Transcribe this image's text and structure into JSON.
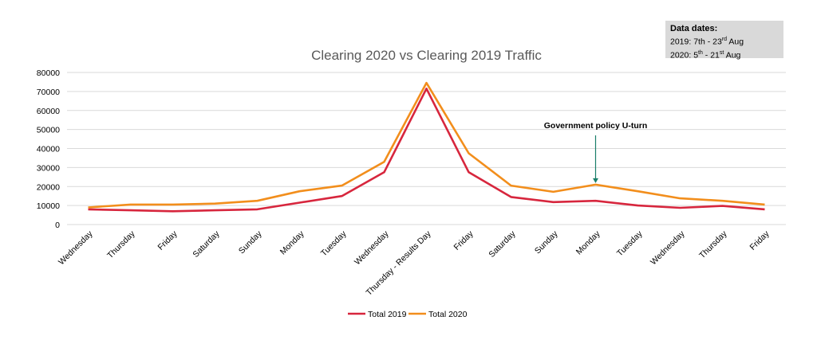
{
  "chart_data": {
    "type": "line",
    "title": "Clearing 2020 vs Clearing 2019 Traffic",
    "categories": [
      "Wednesday",
      "Thursday",
      "Friday",
      "Saturday",
      "Sunday",
      "Monday",
      "Tuesday",
      "Wednesday",
      "Thursday - Results Day",
      "Friday",
      "Saturday",
      "Sunday",
      "Monday",
      "Tuesday",
      "Wednesday",
      "Thursday",
      "Friday"
    ],
    "series": [
      {
        "name": "Total 2019",
        "color": "#d7263d",
        "values": [
          8000,
          7500,
          7000,
          7500,
          8000,
          11500,
          15000,
          27500,
          71500,
          27500,
          14500,
          11800,
          12500,
          10000,
          8800,
          9800,
          8000
        ]
      },
      {
        "name": "Total 2020",
        "color": "#f28e1c",
        "values": [
          9000,
          10500,
          10500,
          11000,
          12500,
          17500,
          20500,
          33000,
          74500,
          37500,
          20500,
          17200,
          21000,
          17500,
          13800,
          12500,
          10500
        ]
      }
    ],
    "y_ticks": [
      "0",
      "10000",
      "20000",
      "30000",
      "40000",
      "50000",
      "60000",
      "70000",
      "80000"
    ],
    "ylim": [
      0,
      80000
    ],
    "grid": true,
    "legend_position": "bottom",
    "annotation": {
      "text": "Government policy U-turn",
      "category_index": 12,
      "color": "#1a7f6a"
    }
  },
  "info": {
    "header": "Data dates:",
    "line1": "2019: 7th - 23",
    "line1_sup": "rd",
    "line1_end": " Aug",
    "line2": "2020: 5",
    "line2_sup": "th",
    "line2_mid": " - 21",
    "line2_sup2": "st",
    "line2_end": " Aug"
  }
}
